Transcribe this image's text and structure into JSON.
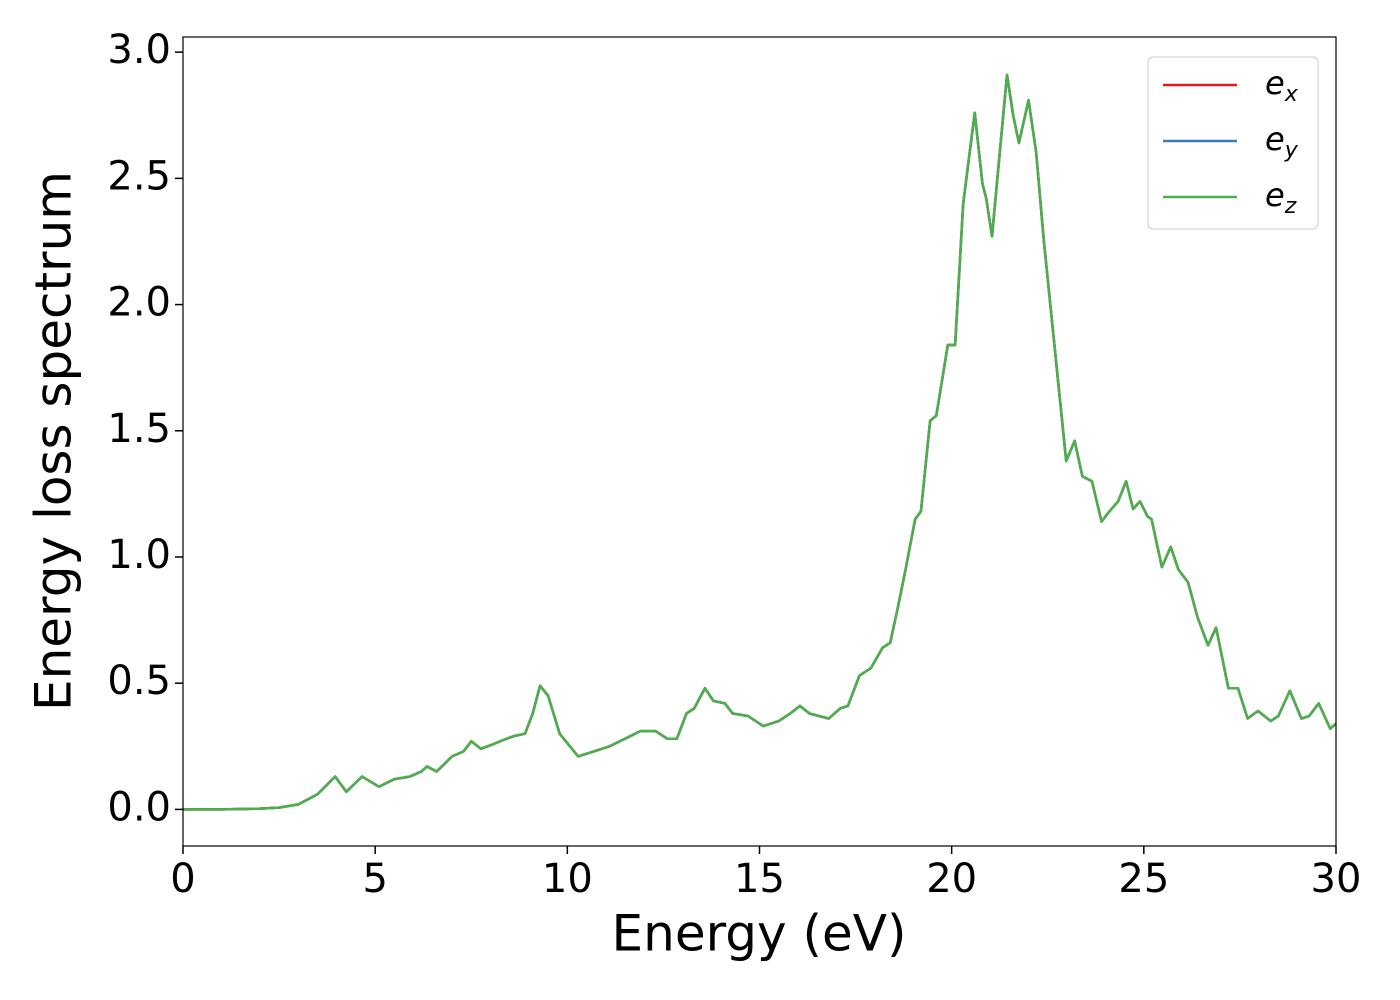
{
  "chart_data": {
    "type": "line",
    "xlabel": "Energy (eV)",
    "ylabel": "Energy loss spectrum",
    "x": [
      0,
      1,
      2,
      2.5,
      3,
      3.5,
      3.96,
      4.25,
      4.66,
      5.1,
      5.5,
      5.9,
      6.2,
      6.35,
      6.6,
      7.0,
      7.3,
      7.5,
      7.75,
      8.1,
      8.25,
      8.6,
      8.9,
      9.1,
      9.29,
      9.5,
      9.8,
      10.28,
      10.7,
      11.1,
      11.5,
      11.9,
      12.3,
      12.6,
      12.85,
      13.1,
      13.3,
      13.58,
      13.8,
      14.1,
      14.3,
      14.7,
      15.1,
      15.5,
      15.8,
      16.05,
      16.3,
      16.8,
      17.1,
      17.3,
      17.6,
      17.9,
      18.2,
      18.4,
      18.6,
      18.8,
      19.05,
      19.2,
      19.44,
      19.6,
      19.9,
      20.09,
      20.3,
      20.6,
      20.8,
      20.9,
      21.05,
      21.25,
      21.44,
      21.6,
      21.75,
      22.0,
      22.2,
      22.4,
      22.7,
      22.98,
      23.2,
      23.4,
      23.65,
      23.9,
      24.1,
      24.33,
      24.54,
      24.72,
      24.9,
      25.1,
      25.2,
      25.47,
      25.7,
      25.9,
      26.15,
      26.4,
      26.67,
      26.88,
      27.2,
      27.45,
      27.7,
      27.97,
      28.3,
      28.5,
      28.8,
      29.1,
      29.3,
      29.55,
      29.85,
      30
    ],
    "series": [
      {
        "name": "e_x",
        "color": "#e41a1c",
        "values": [
          0,
          0,
          0.003,
          0.007,
          0.02,
          0.06,
          0.13,
          0.07,
          0.13,
          0.09,
          0.12,
          0.13,
          0.15,
          0.17,
          0.15,
          0.21,
          0.23,
          0.27,
          0.24,
          0.26,
          0.27,
          0.29,
          0.3,
          0.38,
          0.49,
          0.45,
          0.3,
          0.21,
          0.23,
          0.25,
          0.28,
          0.31,
          0.31,
          0.28,
          0.28,
          0.38,
          0.4,
          0.48,
          0.43,
          0.42,
          0.38,
          0.37,
          0.33,
          0.35,
          0.38,
          0.41,
          0.38,
          0.36,
          0.4,
          0.41,
          0.53,
          0.56,
          0.64,
          0.66,
          0.8,
          0.95,
          1.15,
          1.18,
          1.54,
          1.56,
          1.84,
          1.84,
          2.4,
          2.76,
          2.48,
          2.42,
          2.27,
          2.6,
          2.91,
          2.75,
          2.64,
          2.81,
          2.6,
          2.25,
          1.8,
          1.38,
          1.46,
          1.32,
          1.3,
          1.14,
          1.18,
          1.22,
          1.3,
          1.19,
          1.22,
          1.16,
          1.15,
          0.96,
          1.04,
          0.95,
          0.9,
          0.76,
          0.65,
          0.72,
          0.48,
          0.48,
          0.36,
          0.39,
          0.35,
          0.37,
          0.47,
          0.36,
          0.37,
          0.42,
          0.32,
          0.34
        ]
      },
      {
        "name": "e_y",
        "color": "#377eb8",
        "values": [
          0,
          0,
          0.003,
          0.007,
          0.02,
          0.06,
          0.13,
          0.07,
          0.13,
          0.09,
          0.12,
          0.13,
          0.15,
          0.17,
          0.15,
          0.21,
          0.23,
          0.27,
          0.24,
          0.26,
          0.27,
          0.29,
          0.3,
          0.38,
          0.49,
          0.45,
          0.3,
          0.21,
          0.23,
          0.25,
          0.28,
          0.31,
          0.31,
          0.28,
          0.28,
          0.38,
          0.4,
          0.48,
          0.43,
          0.42,
          0.38,
          0.37,
          0.33,
          0.35,
          0.38,
          0.41,
          0.38,
          0.36,
          0.4,
          0.41,
          0.53,
          0.56,
          0.64,
          0.66,
          0.8,
          0.95,
          1.15,
          1.18,
          1.54,
          1.56,
          1.84,
          1.84,
          2.4,
          2.76,
          2.48,
          2.42,
          2.27,
          2.6,
          2.91,
          2.75,
          2.64,
          2.81,
          2.6,
          2.25,
          1.8,
          1.38,
          1.46,
          1.32,
          1.3,
          1.14,
          1.18,
          1.22,
          1.3,
          1.19,
          1.22,
          1.16,
          1.15,
          0.96,
          1.04,
          0.95,
          0.9,
          0.76,
          0.65,
          0.72,
          0.48,
          0.48,
          0.36,
          0.39,
          0.35,
          0.37,
          0.47,
          0.36,
          0.37,
          0.42,
          0.32,
          0.34
        ]
      },
      {
        "name": "e_z",
        "color": "#4daf4a",
        "values": [
          0,
          0,
          0.003,
          0.007,
          0.02,
          0.06,
          0.13,
          0.07,
          0.13,
          0.09,
          0.12,
          0.13,
          0.15,
          0.17,
          0.15,
          0.21,
          0.23,
          0.27,
          0.24,
          0.26,
          0.27,
          0.29,
          0.3,
          0.38,
          0.49,
          0.45,
          0.3,
          0.21,
          0.23,
          0.25,
          0.28,
          0.31,
          0.31,
          0.28,
          0.28,
          0.38,
          0.4,
          0.48,
          0.43,
          0.42,
          0.38,
          0.37,
          0.33,
          0.35,
          0.38,
          0.41,
          0.38,
          0.36,
          0.4,
          0.41,
          0.53,
          0.56,
          0.64,
          0.66,
          0.8,
          0.95,
          1.15,
          1.18,
          1.54,
          1.56,
          1.84,
          1.84,
          2.4,
          2.76,
          2.48,
          2.42,
          2.27,
          2.6,
          2.91,
          2.75,
          2.64,
          2.81,
          2.6,
          2.25,
          1.8,
          1.38,
          1.46,
          1.32,
          1.3,
          1.14,
          1.18,
          1.22,
          1.3,
          1.19,
          1.22,
          1.16,
          1.15,
          0.96,
          1.04,
          0.95,
          0.9,
          0.76,
          0.65,
          0.72,
          0.48,
          0.48,
          0.36,
          0.39,
          0.35,
          0.37,
          0.47,
          0.36,
          0.37,
          0.42,
          0.32,
          0.34
        ]
      }
    ],
    "xlim": [
      0,
      30
    ],
    "xticks": [
      0,
      5,
      10,
      15,
      20,
      25,
      30
    ],
    "ylim": [
      -0.145,
      3.06
    ],
    "yticks": [
      {
        "value": 0,
        "label": "0.0"
      },
      0.5,
      {
        "value": 1,
        "label": "1.0"
      },
      1.5,
      {
        "value": 2,
        "label": "2.0"
      },
      2.5,
      {
        "value": 3,
        "label": "3.0"
      }
    ],
    "legend": "upper right",
    "grid": false
  }
}
